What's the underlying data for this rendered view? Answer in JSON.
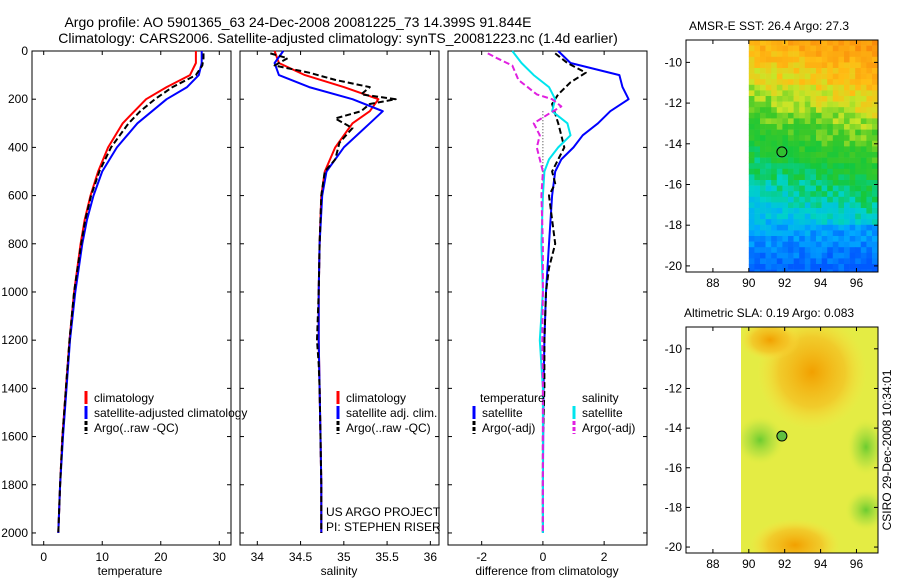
{
  "figure": {
    "title_line1": "Argo profile: AO 5901365_63 24-Dec-2008 20081225_73 14.399S 91.844E",
    "title_line2": "Climatology: CARS2006. Satellite-adjusted climatology: synTS_20081223.nc (1.4d earlier)",
    "credit_line1": "US ARGO PROJECT",
    "credit_line2": "PI: STEPHEN RISER",
    "timestamp": "CSIRO 29-Dec-2008 10:34:01"
  },
  "colors": {
    "climatology": "#ff0000",
    "satellite": "#0000ff",
    "argo": "#000000",
    "salinity_satellite": "#00e5ee",
    "salinity_argo": "#e020e0"
  },
  "chart_data": [
    {
      "id": "temperature",
      "type": "line",
      "xlabel": "temperature",
      "xlim": [
        -2,
        32
      ],
      "ylim": [
        2050,
        0
      ],
      "xticks": [
        0,
        10,
        20,
        30
      ],
      "yticks": [
        0,
        200,
        400,
        600,
        800,
        1000,
        1200,
        1400,
        1600,
        1800,
        2000
      ],
      "legend": [
        "climatology",
        "satellite-adjusted climatology",
        "Argo(..raw -QC)"
      ],
      "series": [
        {
          "name": "climatology",
          "color": "climatology",
          "dash": "",
          "depth": [
            0,
            50,
            100,
            150,
            200,
            300,
            400,
            500,
            600,
            700,
            800,
            1000,
            1200,
            1400,
            1600,
            1800,
            2000
          ],
          "values": [
            26.0,
            26.0,
            25.0,
            21.0,
            17.5,
            13.5,
            11.0,
            9.3,
            8.0,
            7.0,
            6.3,
            5.2,
            4.4,
            3.8,
            3.2,
            2.8,
            2.5
          ]
        },
        {
          "name": "satellite-adjusted climatology",
          "color": "satellite",
          "dash": "",
          "depth": [
            0,
            50,
            100,
            150,
            200,
            300,
            400,
            500,
            600,
            700,
            800,
            1000,
            1200,
            1400,
            1600,
            1800,
            2000
          ],
          "values": [
            27.0,
            27.0,
            26.5,
            24.5,
            21.0,
            16.0,
            12.5,
            10.0,
            8.5,
            7.4,
            6.6,
            5.4,
            4.5,
            3.9,
            3.3,
            2.8,
            2.5
          ]
        },
        {
          "name": "Argo(..raw -QC)",
          "color": "argo",
          "dash": "6,3",
          "depth": [
            10,
            30,
            60,
            100,
            150,
            200,
            250,
            300,
            350,
            400,
            500,
            600,
            700,
            800,
            1000,
            1200,
            1400,
            1600,
            1800,
            2000
          ],
          "values": [
            27.3,
            27.3,
            27.1,
            26.0,
            22.0,
            19.0,
            16.5,
            14.5,
            13.0,
            11.5,
            9.5,
            8.1,
            7.1,
            6.4,
            5.2,
            4.4,
            3.8,
            3.2,
            2.8,
            2.5
          ]
        }
      ]
    },
    {
      "id": "salinity",
      "type": "line",
      "xlabel": "salinity",
      "xlim": [
        33.8,
        36.1
      ],
      "ylim": [
        2050,
        0
      ],
      "xticks": [
        34,
        34.5,
        35,
        35.5,
        36
      ],
      "legend": [
        "climatology",
        "satellite adj. clim.",
        "Argo(..raw -QC)"
      ],
      "series": [
        {
          "name": "climatology",
          "color": "climatology",
          "dash": "",
          "depth": [
            0,
            50,
            100,
            150,
            200,
            250,
            300,
            400,
            500,
            600,
            800,
            1000,
            1200,
            1400,
            1600,
            1800,
            2000
          ],
          "values": [
            34.2,
            34.25,
            34.55,
            35.0,
            35.4,
            35.3,
            35.1,
            34.9,
            34.78,
            34.74,
            34.72,
            34.71,
            34.71,
            34.72,
            34.73,
            34.74,
            34.74
          ]
        },
        {
          "name": "satellite adj. clim.",
          "color": "satellite",
          "dash": "",
          "depth": [
            0,
            50,
            100,
            150,
            200,
            250,
            300,
            400,
            500,
            600,
            800,
            1000,
            1200,
            1400,
            1600,
            1800,
            2000
          ],
          "values": [
            34.3,
            34.2,
            34.25,
            34.6,
            35.1,
            35.45,
            35.3,
            35.0,
            34.8,
            34.75,
            34.72,
            34.71,
            34.71,
            34.72,
            34.73,
            34.74,
            34.74
          ]
        },
        {
          "name": "Argo(..raw -QC)",
          "color": "argo",
          "dash": "6,3",
          "depth": [
            10,
            30,
            60,
            90,
            120,
            150,
            180,
            200,
            220,
            250,
            280,
            320,
            380,
            450,
            500,
            600,
            800,
            1000,
            1200,
            1300,
            1400,
            1600,
            1800,
            2000
          ],
          "values": [
            34.15,
            34.35,
            34.2,
            34.6,
            34.9,
            35.3,
            35.2,
            35.6,
            35.3,
            35.2,
            34.9,
            35.1,
            34.95,
            34.9,
            34.78,
            34.74,
            34.72,
            34.71,
            34.69,
            34.71,
            34.72,
            34.73,
            34.74,
            34.74
          ]
        }
      ]
    },
    {
      "id": "difference",
      "type": "line",
      "xlabel": "difference from climatology",
      "xlim": [
        -3.1,
        3.4
      ],
      "ylim": [
        2050,
        0
      ],
      "xticks": [
        -2,
        0,
        2
      ],
      "legend_header_left": "temperature",
      "legend_header_right": "salinity",
      "legend": [
        "satellite",
        "Argo(-adj)",
        "satellite",
        "Argo(-adj)"
      ],
      "series": [
        {
          "name": "temperature satellite",
          "color": "satellite",
          "dash": "",
          "depth": [
            0,
            50,
            100,
            150,
            200,
            250,
            300,
            350,
            400,
            450,
            500,
            600,
            800,
            1000,
            1200,
            1400,
            1600,
            1800,
            2000
          ],
          "values": [
            0.5,
            0.9,
            2.5,
            2.6,
            2.8,
            2.2,
            1.8,
            1.3,
            1.0,
            0.6,
            0.4,
            0.3,
            0.2,
            0.1,
            0.05,
            0.02,
            0.01,
            0.0,
            0.0
          ]
        },
        {
          "name": "temperature Argo(-adj)",
          "color": "argo",
          "dash": "6,3",
          "depth": [
            10,
            50,
            90,
            130,
            180,
            220,
            300,
            350,
            400,
            450,
            500,
            550,
            600,
            700,
            800,
            900,
            1000,
            1200,
            1400,
            1600,
            1800,
            2000
          ],
          "values": [
            0.4,
            0.8,
            1.4,
            0.9,
            0.5,
            0.3,
            0.5,
            0.6,
            0.7,
            0.5,
            0.3,
            0.4,
            0.2,
            0.3,
            0.4,
            0.2,
            0.1,
            0.05,
            0.05,
            0.0,
            0.0,
            0.0
          ]
        },
        {
          "name": "salinity satellite",
          "color": "salinity_satellite",
          "dash": "",
          "depth": [
            0,
            50,
            100,
            150,
            200,
            250,
            300,
            350,
            400,
            450,
            500,
            600,
            800,
            1000,
            1200,
            1400,
            1600,
            1800,
            2000
          ],
          "values": [
            -1.0,
            -0.7,
            -0.3,
            0.2,
            0.4,
            0.3,
            0.8,
            0.9,
            0.5,
            0.2,
            0.05,
            0.0,
            -0.05,
            0.0,
            -0.1,
            0.0,
            0.0,
            0.0,
            0.0
          ]
        },
        {
          "name": "salinity Argo(-adj)",
          "color": "salinity_argo",
          "dash": "6,3",
          "depth": [
            10,
            30,
            60,
            90,
            120,
            150,
            180,
            200,
            230,
            260,
            300,
            350,
            400,
            450,
            500,
            600,
            800,
            1000,
            1200,
            1400,
            1600,
            1800,
            2000
          ],
          "values": [
            -1.8,
            -1.5,
            -1.0,
            -0.9,
            -0.8,
            -0.5,
            -0.2,
            0.3,
            0.6,
            0.2,
            -0.3,
            -0.1,
            -0.2,
            -0.1,
            0.0,
            -0.05,
            0.0,
            0.0,
            -0.02,
            0.0,
            0.0,
            0.0,
            0.0
          ]
        }
      ]
    },
    {
      "id": "sst_map",
      "type": "heatmap",
      "title": "AMSR-E SST: 26.4 Argo: 27.3",
      "xlim": [
        86.5,
        97.2
      ],
      "ylim": [
        -20.3,
        -8.9
      ],
      "xticks": [
        88,
        90,
        92,
        94,
        96
      ],
      "yticks": [
        -10,
        -12,
        -14,
        -16,
        -18,
        -20
      ],
      "data_x_start": 90,
      "profile_marker": {
        "lon": 91.844,
        "lat": -14.399
      }
    },
    {
      "id": "sla_map",
      "type": "heatmap",
      "title": "Altimetric SLA: 0.19 Argo: 0.083",
      "xlim": [
        86.5,
        97.2
      ],
      "ylim": [
        -20.3,
        -8.9
      ],
      "xticks": [
        88,
        90,
        92,
        94,
        96
      ],
      "yticks": [
        -10,
        -12,
        -14,
        -16,
        -18,
        -20
      ],
      "data_x_start": 90,
      "profile_marker": {
        "lon": 91.844,
        "lat": -14.399
      }
    }
  ]
}
